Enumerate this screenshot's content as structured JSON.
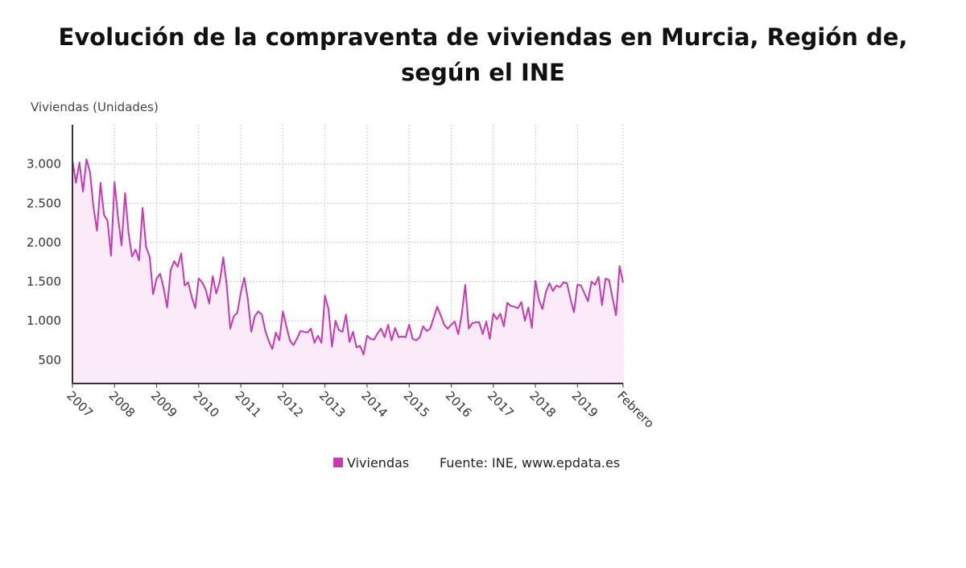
{
  "chart_data": {
    "type": "area",
    "title_line1": "Evolución de la compraventa de viviendas en Murcia, Región de,",
    "title_line2": "según el INE",
    "ylabel": "Viviendas (Unidades)",
    "ylim": [
      200,
      3500
    ],
    "yticks": [
      500,
      1000,
      1500,
      2000,
      2500,
      3000
    ],
    "ytick_labels": [
      "500",
      "1.000",
      "1.500",
      "2.000",
      "2.500",
      "3.000"
    ],
    "xticks": [
      {
        "label": "2007",
        "month_index": 0
      },
      {
        "label": "2008",
        "month_index": 12
      },
      {
        "label": "2009",
        "month_index": 24
      },
      {
        "label": "2010",
        "month_index": 36
      },
      {
        "label": "2011",
        "month_index": 48
      },
      {
        "label": "2012",
        "month_index": 60
      },
      {
        "label": "2013",
        "month_index": 72
      },
      {
        "label": "2014",
        "month_index": 84
      },
      {
        "label": "2015",
        "month_index": 96
      },
      {
        "label": "2016",
        "month_index": 108
      },
      {
        "label": "2017",
        "month_index": 120
      },
      {
        "label": "2018",
        "month_index": 132
      },
      {
        "label": "2019",
        "month_index": 144
      },
      {
        "label": "Febrero",
        "month_index": 157
      }
    ],
    "grid": true,
    "legend_position": "bottom",
    "series": [
      {
        "name": "Viviendas",
        "color": "#c837b4",
        "fill": "#fbeaf8",
        "values": [
          3050,
          2760,
          3020,
          2650,
          3060,
          2900,
          2450,
          2150,
          2760,
          2350,
          2280,
          1830,
          2770,
          2320,
          1960,
          2630,
          2120,
          1820,
          1910,
          1770,
          2440,
          1940,
          1820,
          1340,
          1540,
          1600,
          1420,
          1170,
          1650,
          1760,
          1690,
          1860,
          1450,
          1490,
          1310,
          1160,
          1540,
          1490,
          1400,
          1220,
          1570,
          1350,
          1500,
          1810,
          1450,
          900,
          1060,
          1100,
          1360,
          1550,
          1280,
          860,
          1060,
          1120,
          1080,
          870,
          740,
          640,
          850,
          750,
          1120,
          930,
          750,
          690,
          770,
          870,
          860,
          850,
          900,
          720,
          810,
          720,
          1320,
          1150,
          670,
          1000,
          880,
          860,
          1080,
          730,
          860,
          660,
          680,
          570,
          810,
          770,
          760,
          840,
          900,
          790,
          950,
          750,
          910,
          790,
          800,
          790,
          950,
          770,
          750,
          790,
          930,
          870,
          900,
          1040,
          1180,
          1070,
          950,
          900,
          950,
          990,
          830,
          1080,
          1460,
          900,
          970,
          980,
          980,
          830,
          990,
          770,
          1090,
          1020,
          1090,
          930,
          1230,
          1190,
          1180,
          1160,
          1240,
          1000,
          1170,
          910,
          1510,
          1270,
          1150,
          1370,
          1480,
          1380,
          1450,
          1430,
          1490,
          1480,
          1280,
          1110,
          1460,
          1450,
          1350,
          1250,
          1500,
          1460,
          1560,
          1200,
          1540,
          1520,
          1290,
          1070,
          1700,
          1490
        ]
      }
    ],
    "source": "Fuente: INE, www.epdata.es"
  }
}
